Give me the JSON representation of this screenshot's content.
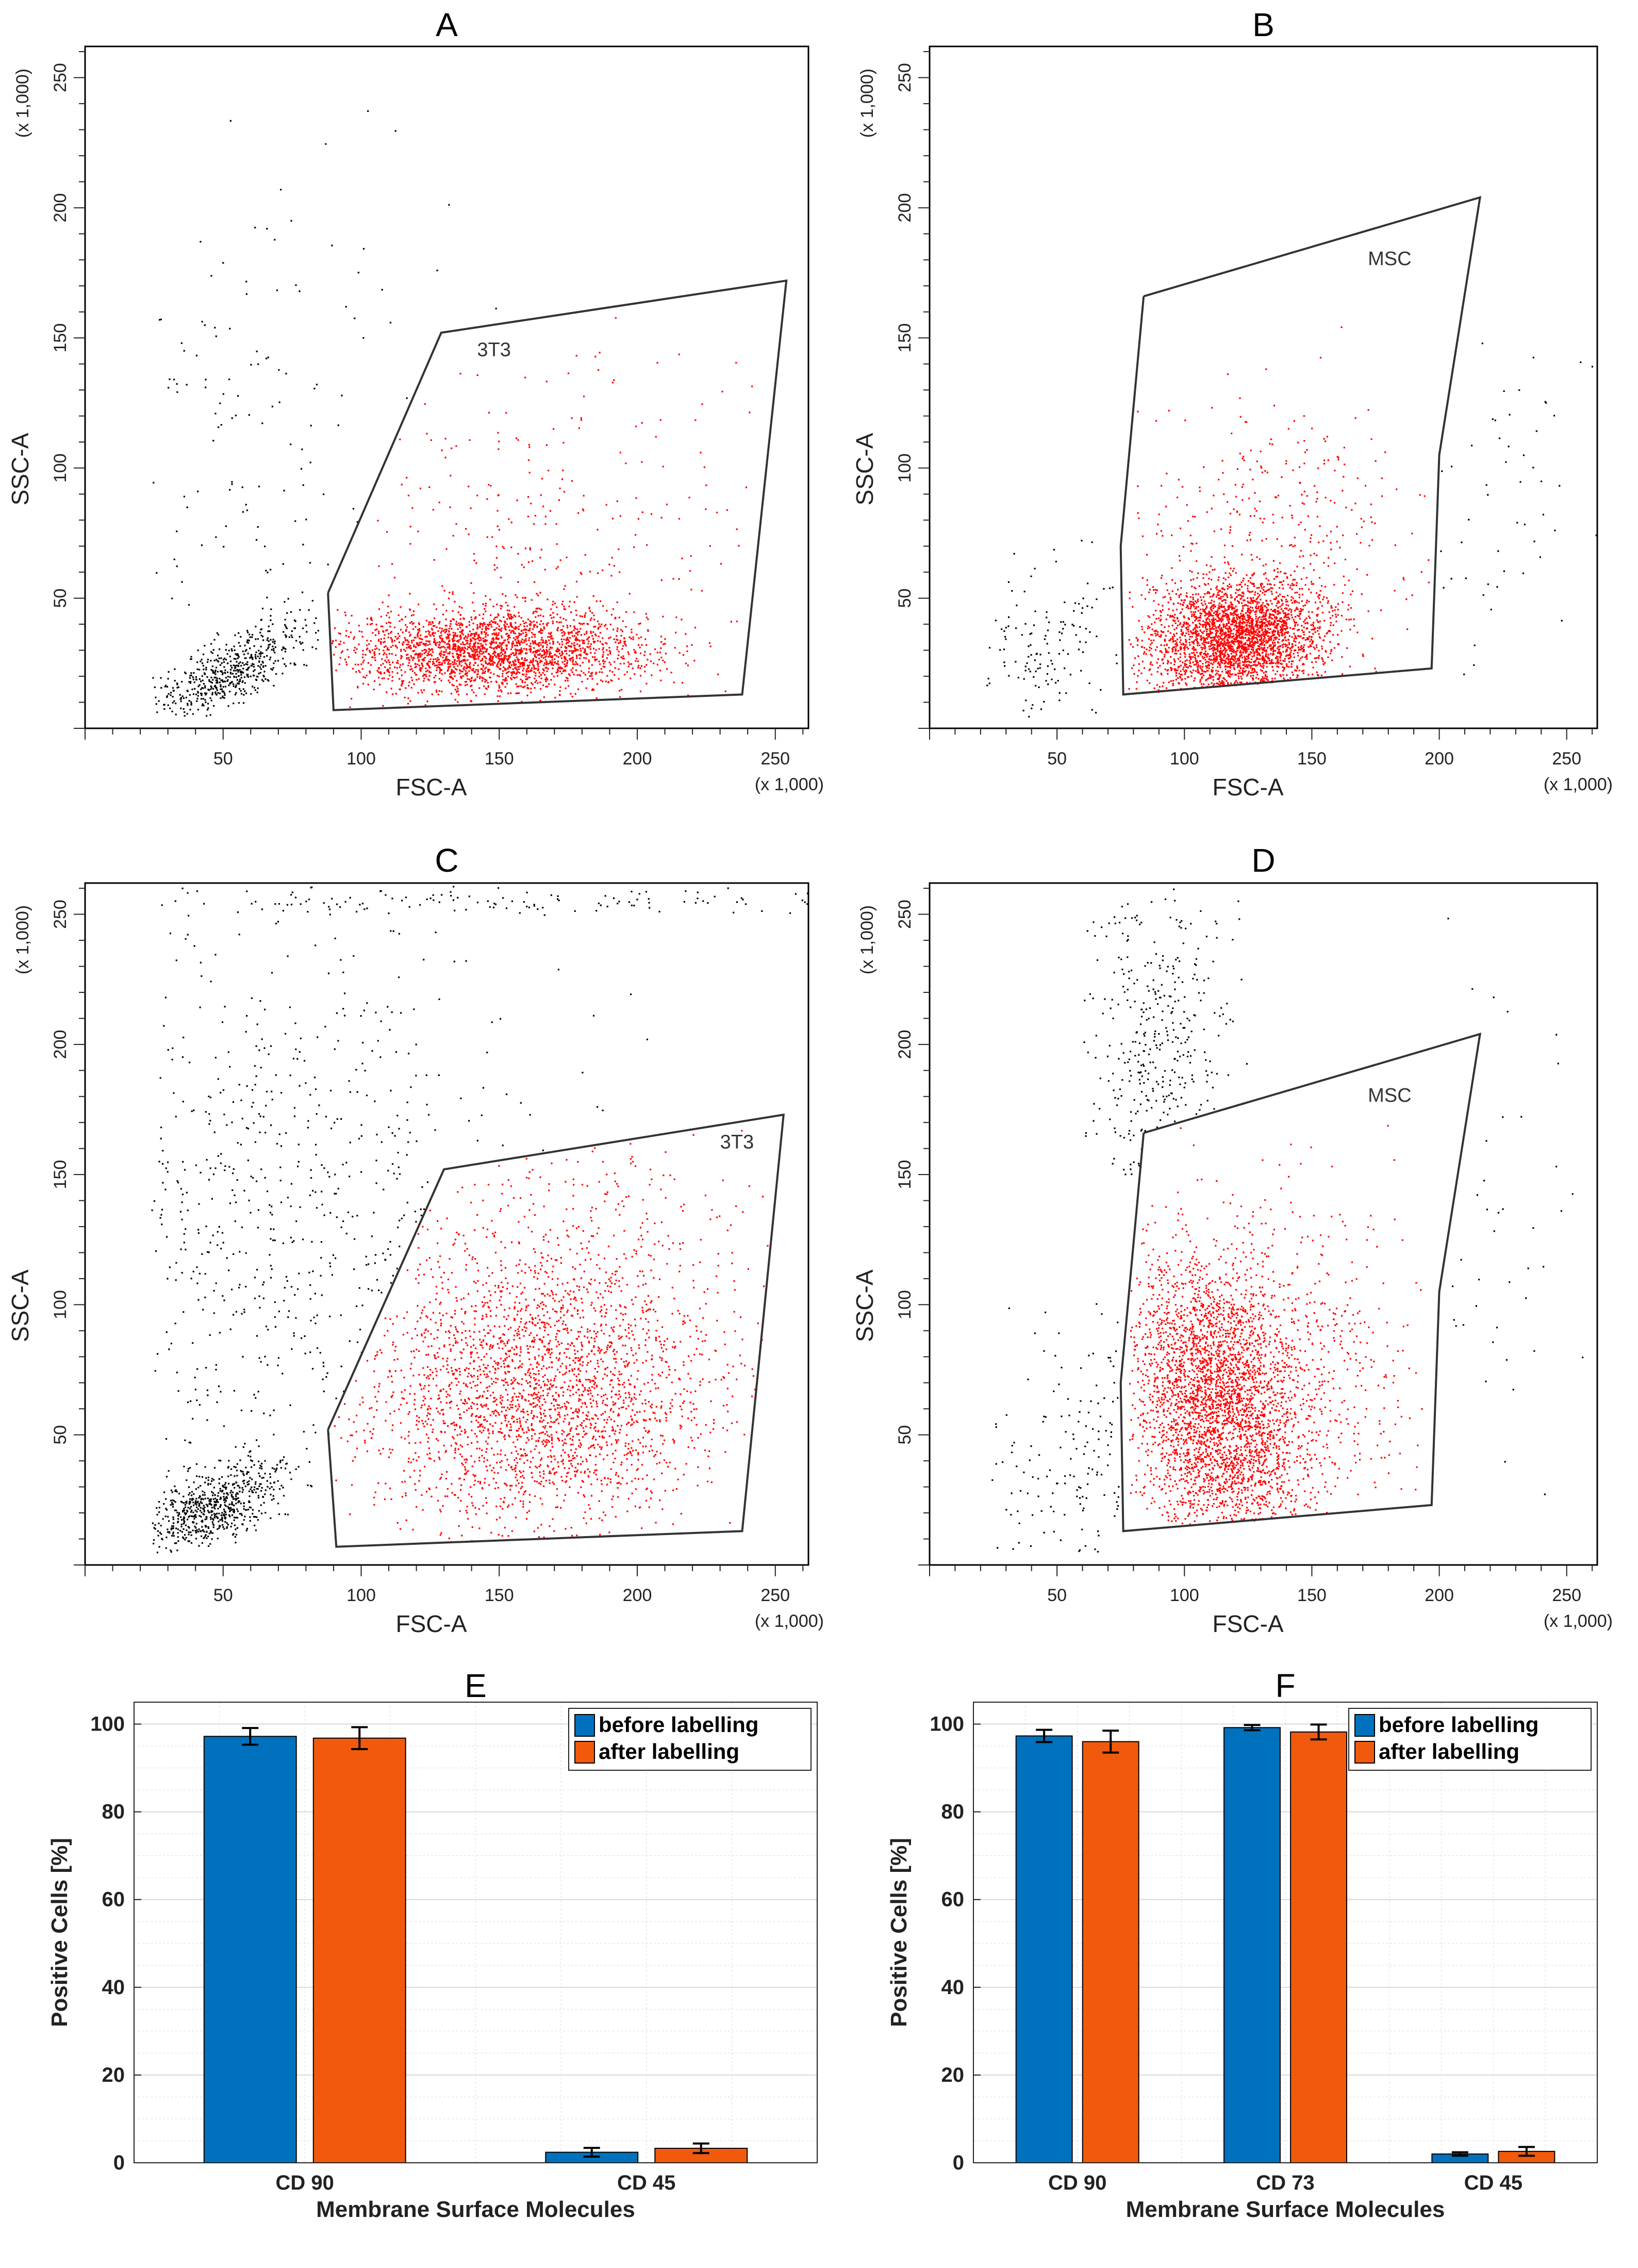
{
  "colors": {
    "gated": "#ff0000",
    "ungated": "#000000",
    "before": "#0072bd",
    "after": "#f15a0c",
    "grid": "#d9d9d9"
  },
  "chart_data": [
    {
      "id": "A",
      "type": "scatter",
      "title": "A",
      "xlabel": "FSC-A",
      "ylabel": "SSC-A",
      "x_multiplier": "(x 1,000)",
      "y_multiplier": "(x 1,000)",
      "xlim": [
        0,
        262
      ],
      "ylim": [
        0,
        262
      ],
      "xticks": [
        50,
        100,
        150,
        200,
        250
      ],
      "yticks": [
        50,
        100,
        150,
        200,
        250
      ],
      "gate_label": "3T3",
      "gate_label_pos": [
        142,
        143
      ],
      "gate": [
        [
          88,
          52
        ],
        [
          129,
          152
        ],
        [
          254,
          172
        ],
        [
          238,
          13
        ],
        [
          90,
          7
        ],
        [
          88,
          52
        ]
      ],
      "clusters": [
        {
          "color": "gated",
          "n": 2400,
          "cx": 148,
          "cy": 30,
          "sx": 28,
          "sy": 8,
          "rho": 0.0,
          "xmin": 89,
          "xmax": 248,
          "ymin": 8,
          "ymax": 60
        },
        {
          "color": "gated",
          "n": 230,
          "cx": 170,
          "cy": 75,
          "sx": 38,
          "sy": 40,
          "rho": 0.0,
          "xmin": 105,
          "xmax": 245,
          "ymin": 40,
          "ymax": 160
        },
        {
          "color": "ungated",
          "n": 550,
          "cx": 52,
          "cy": 22,
          "sx": 14,
          "sy": 9,
          "rho": 0.7,
          "xmin": 24,
          "xmax": 87,
          "ymin": 5,
          "ymax": 55
        },
        {
          "color": "ungated",
          "n": 120,
          "cx": 60,
          "cy": 110,
          "sx": 35,
          "sy": 55,
          "rho": 0.0,
          "xmin": 24,
          "xmax": 200,
          "ymin": 45,
          "ymax": 260
        }
      ]
    },
    {
      "id": "B",
      "type": "scatter",
      "title": "B",
      "xlabel": "FSC-A",
      "ylabel": "SSC-A",
      "x_multiplier": "(x 1,000)",
      "y_multiplier": "(x 1,000)",
      "xlim": [
        0,
        262
      ],
      "ylim": [
        0,
        262
      ],
      "xticks": [
        50,
        100,
        150,
        200,
        250
      ],
      "yticks": [
        50,
        100,
        150,
        200,
        250
      ],
      "gate_label": "MSC",
      "gate_label_pos": [
        172,
        178
      ],
      "gate": [
        [
          84,
          166
        ],
        [
          216,
          204
        ],
        [
          200,
          105
        ],
        [
          197,
          23
        ],
        [
          76,
          13
        ],
        [
          75,
          70
        ],
        [
          84,
          166
        ]
      ],
      "clusters": [
        {
          "color": "gated",
          "n": 2800,
          "cx": 120,
          "cy": 35,
          "sx": 17,
          "sy": 11,
          "rho": 0.1,
          "xmin": 78,
          "xmax": 195,
          "ymin": 14,
          "ymax": 100
        },
        {
          "color": "gated",
          "n": 350,
          "cx": 130,
          "cy": 70,
          "sx": 28,
          "sy": 30,
          "rho": 0.0,
          "xmin": 80,
          "xmax": 200,
          "ymin": 30,
          "ymax": 185
        },
        {
          "color": "ungated",
          "n": 130,
          "cx": 45,
          "cy": 32,
          "sx": 16,
          "sy": 15,
          "rho": 0.3,
          "xmin": 22,
          "xmax": 74,
          "ymin": 3,
          "ymax": 90
        },
        {
          "color": "ungated",
          "n": 50,
          "cx": 220,
          "cy": 80,
          "sx": 25,
          "sy": 45,
          "rho": 0.0,
          "xmin": 198,
          "xmax": 262,
          "ymin": 20,
          "ymax": 240
        }
      ]
    },
    {
      "id": "C",
      "type": "scatter",
      "title": "C",
      "xlabel": "FSC-A",
      "ylabel": "SSC-A",
      "x_multiplier": "(x 1,000)",
      "y_multiplier": "(x 1,000)",
      "xlim": [
        0,
        262
      ],
      "ylim": [
        0,
        262
      ],
      "xticks": [
        50,
        100,
        150,
        200,
        250
      ],
      "yticks": [
        50,
        100,
        150,
        200,
        250
      ],
      "gate_label": "3T3",
      "gate_label_pos": [
        230,
        160
      ],
      "gate": [
        [
          88,
          52
        ],
        [
          130,
          152
        ],
        [
          253,
          173
        ],
        [
          238,
          13
        ],
        [
          91,
          7
        ],
        [
          88,
          52
        ]
      ],
      "clusters": [
        {
          "color": "gated",
          "n": 1900,
          "cx": 162,
          "cy": 62,
          "sx": 30,
          "sy": 25,
          "rho": 0.0,
          "xmin": 90,
          "xmax": 250,
          "ymin": 8,
          "ymax": 170
        },
        {
          "color": "gated",
          "n": 900,
          "cx": 170,
          "cy": 95,
          "sx": 40,
          "sy": 40,
          "rho": 0.0,
          "xmin": 90,
          "xmax": 250,
          "ymin": 8,
          "ymax": 170
        },
        {
          "color": "ungated",
          "n": 650,
          "cx": 45,
          "cy": 22,
          "sx": 12,
          "sy": 9,
          "rho": 0.6,
          "xmin": 24,
          "xmax": 87,
          "ymin": 5,
          "ymax": 50
        },
        {
          "color": "ungated",
          "n": 600,
          "cx": 75,
          "cy": 130,
          "sx": 45,
          "sy": 65,
          "rho": 0.0,
          "xmin": 24,
          "xmax": 262,
          "ymin": 30,
          "ymax": 260
        },
        {
          "color": "ungated",
          "n": 120,
          "cx": 140,
          "cy": 255,
          "sx": 70,
          "sy": 3,
          "rho": 0.0,
          "xmin": 24,
          "xmax": 262,
          "ymin": 250,
          "ymax": 261
        }
      ]
    },
    {
      "id": "D",
      "type": "scatter",
      "title": "D",
      "xlabel": "FSC-A",
      "ylabel": "SSC-A",
      "x_multiplier": "(x 1,000)",
      "y_multiplier": "(x 1,000)",
      "xlim": [
        0,
        262
      ],
      "ylim": [
        0,
        262
      ],
      "xticks": [
        50,
        100,
        150,
        200,
        250
      ],
      "yticks": [
        50,
        100,
        150,
        200,
        250
      ],
      "gate_label": "MSC",
      "gate_label_pos": [
        172,
        178
      ],
      "gate": [
        [
          84,
          166
        ],
        [
          216,
          204
        ],
        [
          200,
          105
        ],
        [
          197,
          23
        ],
        [
          76,
          13
        ],
        [
          75,
          70
        ],
        [
          84,
          166
        ]
      ],
      "clusters": [
        {
          "color": "gated",
          "n": 2900,
          "cx": 112,
          "cy": 62,
          "sx": 16,
          "sy": 28,
          "rho": -0.2,
          "xmin": 78,
          "xmax": 198,
          "ymin": 14,
          "ymax": 190
        },
        {
          "color": "gated",
          "n": 700,
          "cx": 135,
          "cy": 70,
          "sx": 28,
          "sy": 35,
          "rho": 0.0,
          "xmin": 78,
          "xmax": 198,
          "ymin": 14,
          "ymax": 190
        },
        {
          "color": "ungated",
          "n": 350,
          "cx": 90,
          "cy": 200,
          "sx": 14,
          "sy": 35,
          "rho": 0.0,
          "xmin": 60,
          "xmax": 160,
          "ymin": 150,
          "ymax": 261
        },
        {
          "color": "ungated",
          "n": 140,
          "cx": 55,
          "cy": 40,
          "sx": 18,
          "sy": 25,
          "rho": 0.3,
          "xmin": 24,
          "xmax": 74,
          "ymin": 3,
          "ymax": 150
        },
        {
          "color": "ungated",
          "n": 40,
          "cx": 225,
          "cy": 110,
          "sx": 20,
          "sy": 60,
          "rho": 0.0,
          "xmin": 200,
          "xmax": 262,
          "ymin": 20,
          "ymax": 260
        }
      ]
    },
    {
      "id": "E",
      "type": "bar",
      "title": "E",
      "xlabel": "Membrane Surface Molecules",
      "ylabel": "Positive Cells [%]",
      "categories": [
        "CD 90",
        "CD 45"
      ],
      "ylim": [
        0,
        105
      ],
      "yticks": [
        0,
        20,
        40,
        60,
        80,
        100
      ],
      "grid": true,
      "legend_position": "top-right",
      "series": [
        {
          "name": "before labelling",
          "color": "before",
          "values": [
            97.2,
            2.4
          ],
          "errors": [
            1.9,
            1.0
          ]
        },
        {
          "name": "after labelling",
          "color": "after",
          "values": [
            96.8,
            3.3
          ],
          "errors": [
            2.5,
            1.1
          ]
        }
      ]
    },
    {
      "id": "F",
      "type": "bar",
      "title": "F",
      "xlabel": "Membrane Surface Molecules",
      "ylabel": "Positive Cells [%]",
      "categories": [
        "CD 90",
        "CD 73",
        "CD 45"
      ],
      "ylim": [
        0,
        105
      ],
      "yticks": [
        0,
        20,
        40,
        60,
        80,
        100
      ],
      "grid": true,
      "legend_position": "top-right",
      "series": [
        {
          "name": "before labelling",
          "color": "before",
          "values": [
            97.3,
            99.2,
            2.0
          ],
          "errors": [
            1.4,
            0.6,
            0.4
          ]
        },
        {
          "name": "after labelling",
          "color": "after",
          "values": [
            96.0,
            98.2,
            2.6
          ],
          "errors": [
            2.5,
            1.7,
            1.0
          ]
        }
      ]
    }
  ]
}
